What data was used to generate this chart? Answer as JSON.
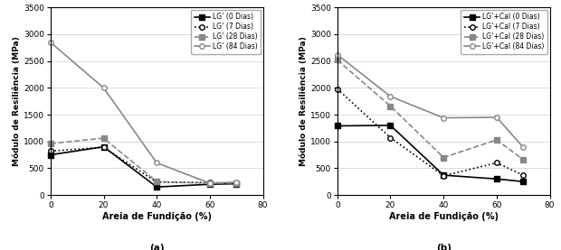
{
  "x": [
    0,
    20,
    40,
    60,
    70
  ],
  "subplot_a": {
    "title_label": "(a)",
    "ylabel": "Módulo de Resiliência (MPa)",
    "xlabel": "Areia de Fundição (%)",
    "series": [
      {
        "label": "LG’ (0 Dias)",
        "y": [
          750,
          900,
          150,
          200,
          210
        ],
        "color": "#000000",
        "linestyle": "-",
        "marker": "s",
        "markerfacecolor": "#000000",
        "linewidth": 1.2
      },
      {
        "label": "LG’ (7 Dias)",
        "y": [
          820,
          890,
          240,
          230,
          215
        ],
        "color": "#000000",
        "linestyle": ":",
        "marker": "o",
        "markerfacecolor": "#ffffff",
        "linewidth": 1.2
      },
      {
        "label": "LG’ (28 Dias)",
        "y": [
          960,
          1060,
          250,
          220,
          225
        ],
        "color": "#888888",
        "linestyle": "--",
        "marker": "s",
        "markerfacecolor": "#888888",
        "linewidth": 1.2
      },
      {
        "label": "LG’ (84 Dias)",
        "y": [
          2850,
          2000,
          600,
          220,
          240
        ],
        "color": "#888888",
        "linestyle": "-",
        "marker": "o",
        "markerfacecolor": "#ffffff",
        "linewidth": 1.2
      }
    ],
    "ylim": [
      0,
      3500
    ],
    "yticks": [
      0,
      500,
      1000,
      1500,
      2000,
      2500,
      3000,
      3500
    ],
    "xlim": [
      0,
      78
    ],
    "xticks": [
      0,
      20,
      40,
      60,
      80
    ]
  },
  "subplot_b": {
    "title_label": "(b)",
    "ylabel": "Módulo de Resiliência (MPa)",
    "xlabel": "Areia de Fundição (%)",
    "series": [
      {
        "label": "LG’+Cal (0 Dias)",
        "y": [
          1290,
          1300,
          370,
          300,
          250
        ],
        "color": "#000000",
        "linestyle": "-",
        "marker": "s",
        "markerfacecolor": "#000000",
        "linewidth": 1.2
      },
      {
        "label": "LG’+Cal (7 Dias)",
        "y": [
          1980,
          1070,
          360,
          600,
          370
        ],
        "color": "#000000",
        "linestyle": ":",
        "marker": "o",
        "markerfacecolor": "#ffffff",
        "linewidth": 1.2
      },
      {
        "label": "LG’+Cal (28 Dias)",
        "y": [
          2520,
          1660,
          700,
          1030,
          660
        ],
        "color": "#888888",
        "linestyle": "--",
        "marker": "s",
        "markerfacecolor": "#888888",
        "linewidth": 1.2
      },
      {
        "label": "LG’+Cal (84 Dias)",
        "y": [
          2620,
          1840,
          1440,
          1450,
          890
        ],
        "color": "#888888",
        "linestyle": "-",
        "marker": "o",
        "markerfacecolor": "#ffffff",
        "linewidth": 1.2
      }
    ],
    "ylim": [
      0,
      3500
    ],
    "yticks": [
      0,
      500,
      1000,
      1500,
      2000,
      2500,
      3000,
      3500
    ],
    "xlim": [
      0,
      78
    ],
    "xticks": [
      0,
      20,
      40,
      60,
      80
    ]
  },
  "background_color": "#ffffff",
  "grid_color": "#cccccc"
}
